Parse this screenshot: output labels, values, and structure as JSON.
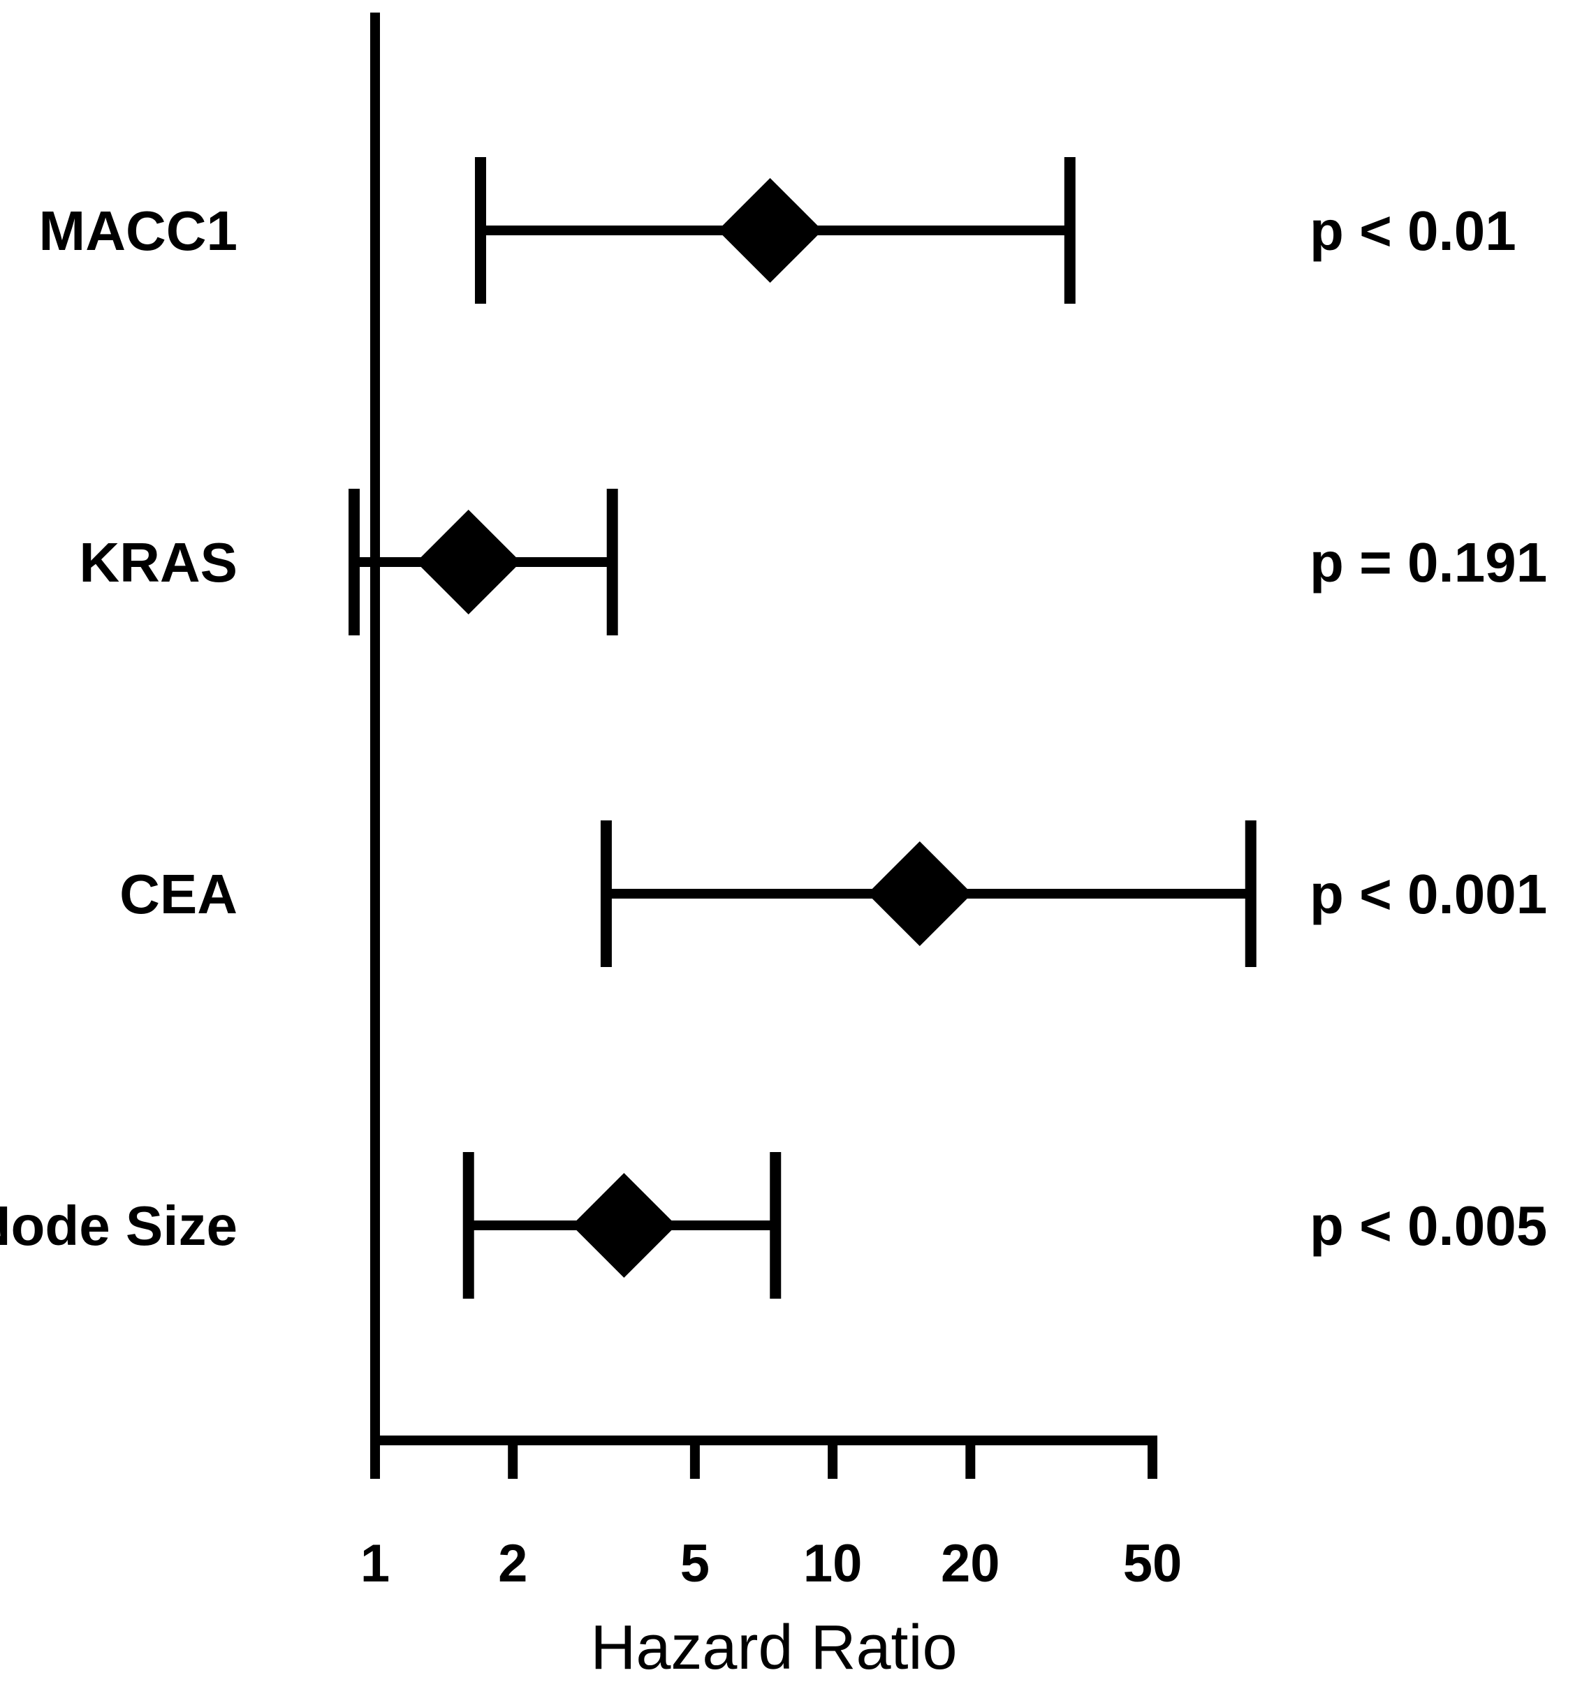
{
  "chart_data": {
    "type": "forest",
    "xlabel": "Hazard Ratio",
    "x_scale": "log",
    "xlim": [
      1,
      50
    ],
    "xticks": [
      1,
      2,
      5,
      10,
      20,
      50
    ],
    "xtick_labels": [
      "1",
      "2",
      "5",
      "10",
      "20",
      "50"
    ],
    "reference_value": 1,
    "grid": false,
    "rows": [
      {
        "label": "MACC1",
        "hr": 7.3,
        "ci_low": 1.7,
        "ci_high": 33,
        "p_text": "p < 0.01"
      },
      {
        "label": "KRAS",
        "hr": 1.6,
        "ci_low": 0.9,
        "ci_high": 3.3,
        "p_text": "p = 0.191"
      },
      {
        "label": "CEA",
        "hr": 15.5,
        "ci_low": 3.2,
        "ci_high": 82,
        "p_text": "p < 0.001"
      },
      {
        "label": "Node Size",
        "hr": 3.5,
        "ci_low": 1.6,
        "ci_high": 7.5,
        "p_text": "p < 0.005"
      }
    ],
    "colors": {
      "marks": "#000000",
      "background": "#ffffff"
    }
  }
}
